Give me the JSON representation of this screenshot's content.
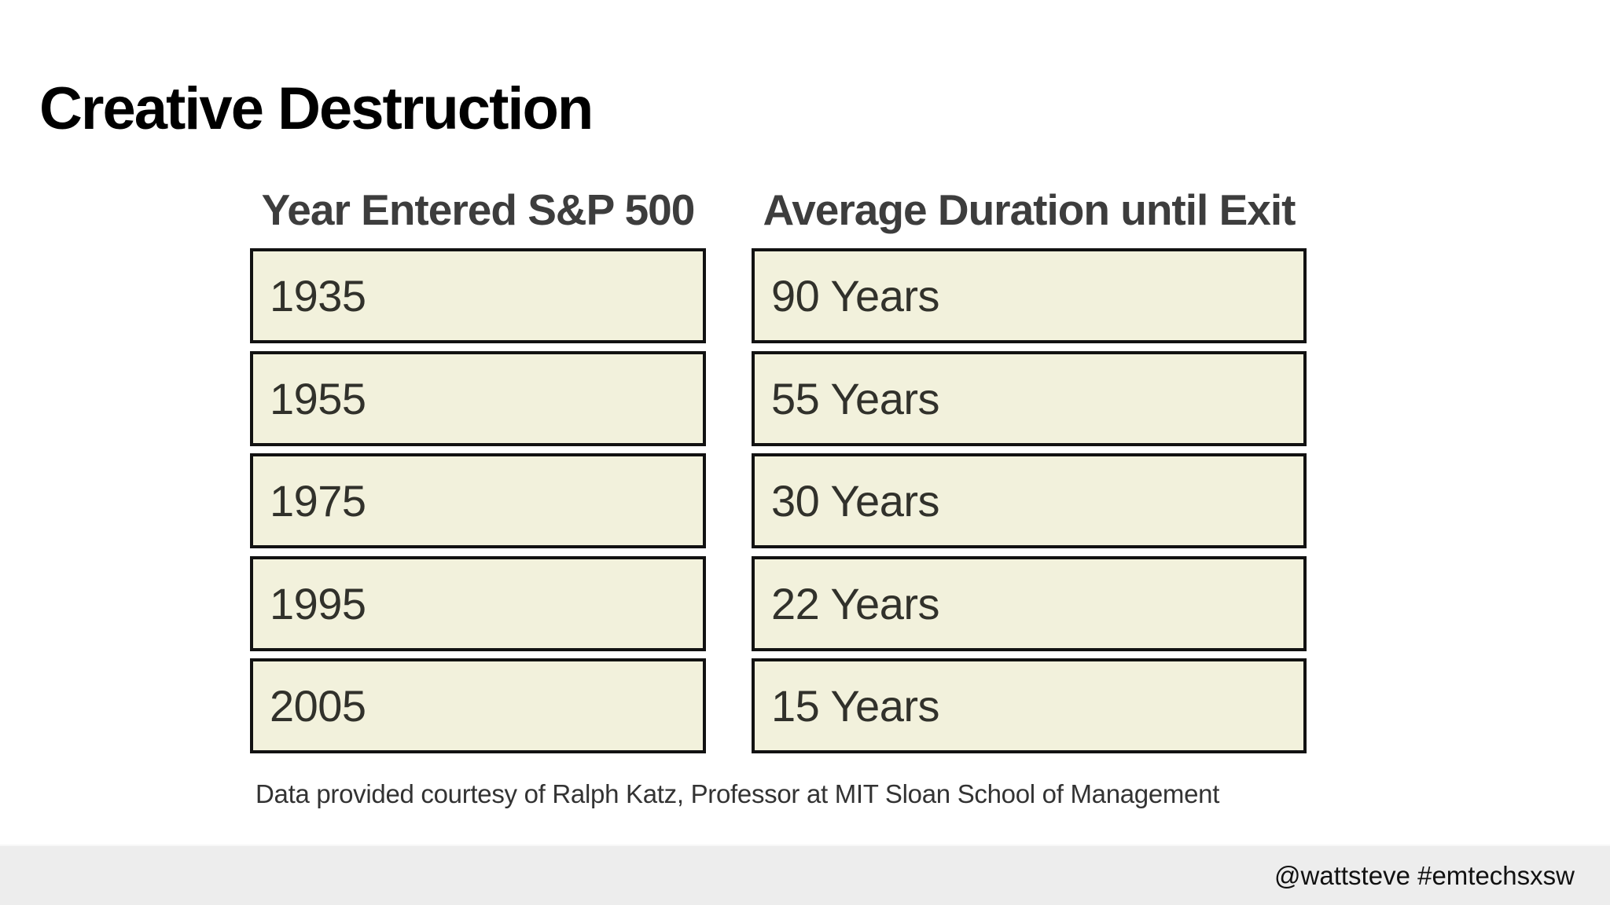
{
  "slide": {
    "title": "Creative Destruction",
    "table": {
      "columns": [
        {
          "header": "Year Entered S&P 500",
          "cells": [
            "1935",
            "1955",
            "1975",
            "1995",
            "2005"
          ]
        },
        {
          "header": "Average Duration until Exit",
          "cells": [
            "90 Years",
            "55 Years",
            "30 Years",
            "22 Years",
            "15 Years"
          ]
        }
      ],
      "caption": "Data provided courtesy of Ralph Katz, Professor at MIT Sloan School of Management"
    },
    "footer": {
      "handle_text": "@wattsteve #emtechsxsw"
    },
    "colors": {
      "background": "#ffffff",
      "box_fill": "#f2f1dc",
      "box_border": "#121212",
      "cell_text": "#31312b",
      "header_text": "#3d3d3d",
      "title_text": "#000000",
      "caption_text": "#333333",
      "footer_band": "#ededed",
      "footer_text": "#111111"
    }
  }
}
